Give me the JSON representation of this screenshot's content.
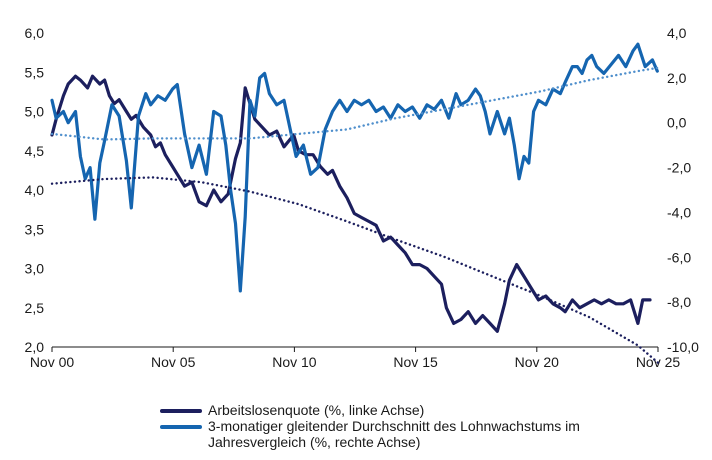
{
  "chart_data": {
    "type": "line",
    "x_ticks": [
      "Nov 00",
      "Nov 05",
      "Nov 10",
      "Nov 15",
      "Nov 20",
      "Nov 25"
    ],
    "x_range": [
      2000.83,
      2025.83
    ],
    "y_left": {
      "range": [
        2.0,
        6.0
      ],
      "ticks": [
        "2,0",
        "2,5",
        "3,0",
        "3,5",
        "4,0",
        "4,5",
        "5,0",
        "5,5",
        "6,0"
      ]
    },
    "y_right": {
      "range": [
        -10.0,
        4.0
      ],
      "ticks": [
        "-10,0",
        "-8,0",
        "-6,0",
        "-4,0",
        "-2,0",
        "0,0",
        "2,0",
        "4,0"
      ]
    },
    "colors": {
      "unemployment": "#1c1f5e",
      "wages": "#1565b0",
      "trend_unemployment": "#1c1f5e",
      "trend_wages": "#4f8fcc"
    },
    "series": [
      {
        "name": "Arbeitslosenquote (%, linke Achse)",
        "axis": "left",
        "points": [
          [
            2000.83,
            4.7
          ],
          [
            2001.0,
            4.9
          ],
          [
            2001.3,
            5.2
          ],
          [
            2001.5,
            5.35
          ],
          [
            2001.8,
            5.45
          ],
          [
            2002.0,
            5.4
          ],
          [
            2002.3,
            5.3
          ],
          [
            2002.5,
            5.45
          ],
          [
            2002.8,
            5.35
          ],
          [
            2003.0,
            5.4
          ],
          [
            2003.2,
            5.2
          ],
          [
            2003.4,
            5.1
          ],
          [
            2003.6,
            5.15
          ],
          [
            2003.9,
            5.0
          ],
          [
            2004.1,
            4.9
          ],
          [
            2004.3,
            4.95
          ],
          [
            2004.6,
            4.8
          ],
          [
            2004.9,
            4.7
          ],
          [
            2005.1,
            4.55
          ],
          [
            2005.3,
            4.6
          ],
          [
            2005.5,
            4.45
          ],
          [
            2005.8,
            4.3
          ],
          [
            2006.0,
            4.2
          ],
          [
            2006.3,
            4.05
          ],
          [
            2006.6,
            4.1
          ],
          [
            2006.9,
            3.85
          ],
          [
            2007.2,
            3.8
          ],
          [
            2007.5,
            4.0
          ],
          [
            2007.8,
            3.85
          ],
          [
            2008.1,
            3.95
          ],
          [
            2008.4,
            4.4
          ],
          [
            2008.6,
            4.6
          ],
          [
            2008.8,
            5.3
          ],
          [
            2009.0,
            5.1
          ],
          [
            2009.2,
            4.9
          ],
          [
            2009.5,
            4.8
          ],
          [
            2009.8,
            4.7
          ],
          [
            2010.1,
            4.75
          ],
          [
            2010.4,
            4.55
          ],
          [
            2010.8,
            4.7
          ],
          [
            2011.0,
            4.5
          ],
          [
            2011.3,
            4.45
          ],
          [
            2011.6,
            4.45
          ],
          [
            2011.9,
            4.3
          ],
          [
            2012.2,
            4.2
          ],
          [
            2012.4,
            4.25
          ],
          [
            2012.7,
            4.05
          ],
          [
            2013.0,
            3.9
          ],
          [
            2013.3,
            3.7
          ],
          [
            2013.6,
            3.65
          ],
          [
            2013.9,
            3.6
          ],
          [
            2014.2,
            3.55
          ],
          [
            2014.5,
            3.35
          ],
          [
            2014.8,
            3.4
          ],
          [
            2015.1,
            3.3
          ],
          [
            2015.4,
            3.2
          ],
          [
            2015.7,
            3.05
          ],
          [
            2016.0,
            3.05
          ],
          [
            2016.3,
            3.0
          ],
          [
            2016.6,
            2.9
          ],
          [
            2016.9,
            2.8
          ],
          [
            2017.1,
            2.5
          ],
          [
            2017.4,
            2.3
          ],
          [
            2017.7,
            2.35
          ],
          [
            2018.0,
            2.45
          ],
          [
            2018.3,
            2.3
          ],
          [
            2018.6,
            2.4
          ],
          [
            2018.9,
            2.3
          ],
          [
            2019.2,
            2.2
          ],
          [
            2019.5,
            2.55
          ],
          [
            2019.7,
            2.85
          ],
          [
            2020.0,
            3.05
          ],
          [
            2020.3,
            2.9
          ],
          [
            2020.6,
            2.75
          ],
          [
            2020.9,
            2.6
          ],
          [
            2021.2,
            2.65
          ],
          [
            2021.5,
            2.55
          ],
          [
            2021.8,
            2.5
          ],
          [
            2022.0,
            2.45
          ],
          [
            2022.3,
            2.6
          ],
          [
            2022.6,
            2.5
          ],
          [
            2022.9,
            2.55
          ],
          [
            2023.2,
            2.6
          ],
          [
            2023.5,
            2.55
          ],
          [
            2023.8,
            2.6
          ],
          [
            2024.1,
            2.55
          ],
          [
            2024.4,
            2.55
          ],
          [
            2024.7,
            2.6
          ],
          [
            2025.0,
            2.3
          ],
          [
            2025.2,
            2.6
          ],
          [
            2025.5,
            2.6
          ]
        ]
      },
      {
        "name": "3-monatiger gleitender Durchschnitt des Lohnwachstums im Jahresvergleich (%, rechte Achse)",
        "axis": "right",
        "points": [
          [
            2000.83,
            1.0
          ],
          [
            2001.0,
            0.2
          ],
          [
            2001.3,
            0.5
          ],
          [
            2001.5,
            0.0
          ],
          [
            2001.8,
            0.5
          ],
          [
            2002.0,
            -1.5
          ],
          [
            2002.2,
            -2.5
          ],
          [
            2002.4,
            -2.0
          ],
          [
            2002.6,
            -4.3
          ],
          [
            2002.8,
            -1.8
          ],
          [
            2003.0,
            -0.8
          ],
          [
            2003.3,
            0.8
          ],
          [
            2003.6,
            0.3
          ],
          [
            2003.9,
            -1.7
          ],
          [
            2004.1,
            -3.8
          ],
          [
            2004.4,
            0.3
          ],
          [
            2004.7,
            1.3
          ],
          [
            2004.9,
            0.8
          ],
          [
            2005.2,
            1.2
          ],
          [
            2005.5,
            1.0
          ],
          [
            2005.8,
            1.5
          ],
          [
            2006.0,
            1.7
          ],
          [
            2006.3,
            -0.5
          ],
          [
            2006.6,
            -2.0
          ],
          [
            2006.9,
            -1.0
          ],
          [
            2007.2,
            -2.3
          ],
          [
            2007.5,
            0.5
          ],
          [
            2007.8,
            0.3
          ],
          [
            2008.0,
            -1.0
          ],
          [
            2008.2,
            -3.0
          ],
          [
            2008.4,
            -4.5
          ],
          [
            2008.6,
            -7.5
          ],
          [
            2008.8,
            -4.2
          ],
          [
            2009.0,
            1.0
          ],
          [
            2009.2,
            0.3
          ],
          [
            2009.4,
            2.0
          ],
          [
            2009.6,
            2.2
          ],
          [
            2009.8,
            1.3
          ],
          [
            2010.1,
            0.8
          ],
          [
            2010.4,
            1.0
          ],
          [
            2010.7,
            -0.5
          ],
          [
            2010.9,
            -1.5
          ],
          [
            2011.2,
            -1.0
          ],
          [
            2011.5,
            -2.3
          ],
          [
            2011.8,
            -2.0
          ],
          [
            2012.1,
            -0.3
          ],
          [
            2012.4,
            0.5
          ],
          [
            2012.7,
            1.0
          ],
          [
            2013.0,
            0.5
          ],
          [
            2013.3,
            1.0
          ],
          [
            2013.6,
            0.8
          ],
          [
            2013.9,
            1.0
          ],
          [
            2014.2,
            0.5
          ],
          [
            2014.5,
            0.7
          ],
          [
            2014.8,
            0.2
          ],
          [
            2015.1,
            0.8
          ],
          [
            2015.4,
            0.5
          ],
          [
            2015.7,
            0.7
          ],
          [
            2016.0,
            0.2
          ],
          [
            2016.3,
            0.8
          ],
          [
            2016.6,
            0.6
          ],
          [
            2016.9,
            1.0
          ],
          [
            2017.2,
            0.2
          ],
          [
            2017.5,
            1.3
          ],
          [
            2017.7,
            0.8
          ],
          [
            2018.0,
            1.0
          ],
          [
            2018.3,
            1.5
          ],
          [
            2018.5,
            1.2
          ],
          [
            2018.7,
            0.5
          ],
          [
            2018.9,
            -0.5
          ],
          [
            2019.2,
            0.5
          ],
          [
            2019.5,
            -0.5
          ],
          [
            2019.7,
            0.2
          ],
          [
            2019.9,
            -1.0
          ],
          [
            2020.1,
            -2.5
          ],
          [
            2020.3,
            -1.5
          ],
          [
            2020.5,
            -1.8
          ],
          [
            2020.7,
            0.5
          ],
          [
            2020.9,
            1.0
          ],
          [
            2021.2,
            0.8
          ],
          [
            2021.5,
            1.5
          ],
          [
            2021.8,
            1.3
          ],
          [
            2022.0,
            1.8
          ],
          [
            2022.3,
            2.5
          ],
          [
            2022.5,
            2.5
          ],
          [
            2022.7,
            2.2
          ],
          [
            2022.9,
            2.8
          ],
          [
            2023.1,
            3.0
          ],
          [
            2023.3,
            2.5
          ],
          [
            2023.6,
            2.2
          ],
          [
            2023.9,
            2.6
          ],
          [
            2024.2,
            3.0
          ],
          [
            2024.5,
            2.5
          ],
          [
            2024.8,
            3.2
          ],
          [
            2025.0,
            3.5
          ],
          [
            2025.3,
            2.5
          ],
          [
            2025.6,
            2.8
          ],
          [
            2025.8,
            2.3
          ]
        ]
      },
      {
        "name": "Trend Arbeitslosenquote",
        "axis": "left",
        "style": "dotted",
        "points": [
          [
            2000.83,
            4.08
          ],
          [
            2003.0,
            4.14
          ],
          [
            2005.0,
            4.16
          ],
          [
            2007.0,
            4.1
          ],
          [
            2009.0,
            3.98
          ],
          [
            2011.0,
            3.82
          ],
          [
            2013.0,
            3.6
          ],
          [
            2015.0,
            3.37
          ],
          [
            2017.0,
            3.15
          ],
          [
            2019.0,
            2.9
          ],
          [
            2021.0,
            2.65
          ],
          [
            2023.0,
            2.38
          ],
          [
            2025.0,
            2.02
          ],
          [
            2025.83,
            1.8
          ]
        ]
      },
      {
        "name": "Trend Lohnwachstum",
        "axis": "right",
        "style": "dotted",
        "points": [
          [
            2000.83,
            -0.5
          ],
          [
            2003.0,
            -0.75
          ],
          [
            2005.0,
            -0.7
          ],
          [
            2007.0,
            -0.7
          ],
          [
            2009.0,
            -0.7
          ],
          [
            2011.0,
            -0.5
          ],
          [
            2013.0,
            -0.3
          ],
          [
            2015.0,
            0.2
          ],
          [
            2017.0,
            0.6
          ],
          [
            2019.0,
            1.0
          ],
          [
            2021.0,
            1.4
          ],
          [
            2023.0,
            1.9
          ],
          [
            2025.0,
            2.3
          ],
          [
            2025.83,
            2.45
          ]
        ]
      }
    ],
    "legend": [
      "Arbeitslosenquote (%, linke Achse)",
      "3-monatiger gleitender Durchschnitt des Lohnwachstums im Jahresvergleich (%, rechte Achse)"
    ]
  }
}
